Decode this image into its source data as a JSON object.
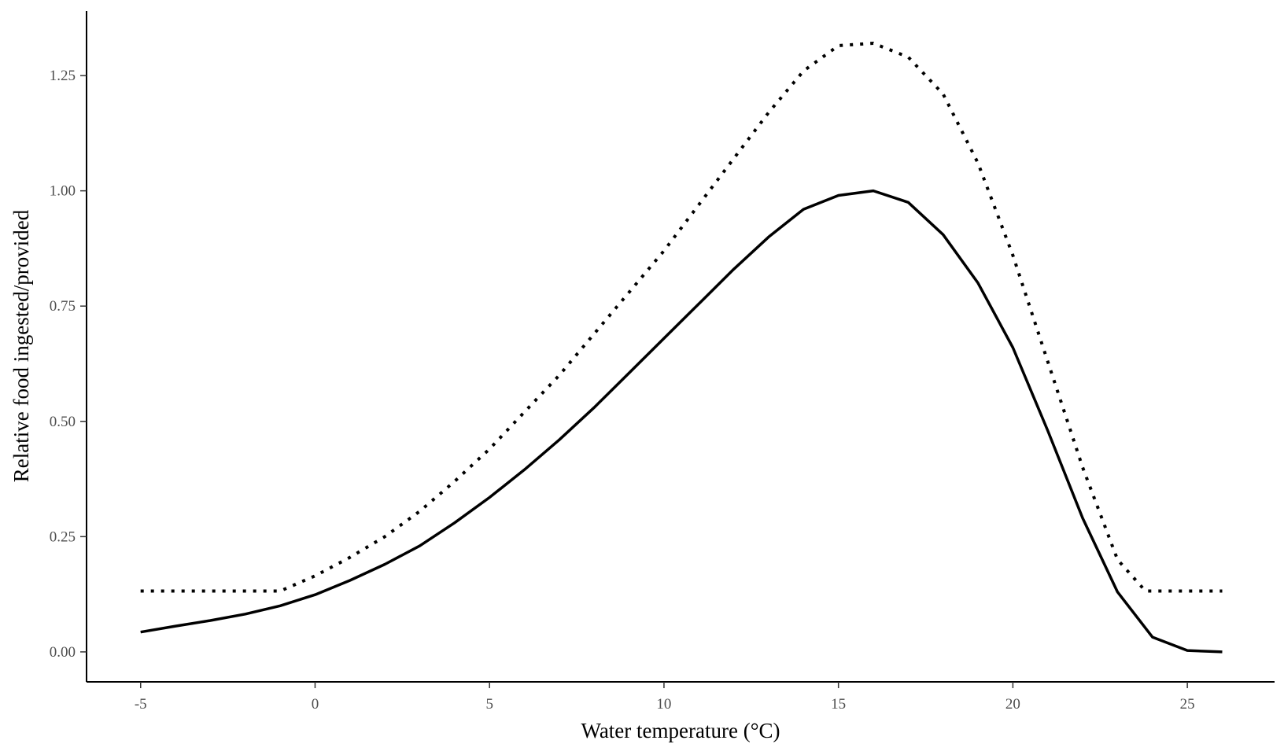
{
  "chart_data": {
    "type": "line",
    "xlabel": "Water temperature (°C)",
    "ylabel": "Relative food ingested/provided",
    "xlim": [
      -6.55,
      27.5
    ],
    "ylim": [
      -0.065,
      1.39
    ],
    "x_ticks": [
      -5,
      0,
      5,
      10,
      15,
      20,
      25
    ],
    "x_tick_labels": [
      "-5",
      "0",
      "5",
      "10",
      "15",
      "20",
      "25"
    ],
    "y_ticks": [
      0,
      0.25,
      0.5,
      0.75,
      1.0,
      1.25
    ],
    "y_tick_labels": [
      "0.00",
      "0.25",
      "0.50",
      "0.75",
      "1.00",
      "1.25"
    ],
    "grid": false,
    "legend": "none",
    "series": [
      {
        "style": "solid",
        "color": "#000000",
        "x": [
          -5,
          -4,
          -3,
          -2,
          -1,
          0,
          1,
          2,
          3,
          4,
          5,
          6,
          7,
          8,
          9,
          10,
          11,
          12,
          13,
          14,
          15,
          16,
          17,
          18,
          19,
          20,
          21,
          22,
          23,
          24,
          25,
          26
        ],
        "y": [
          0.043,
          0.056,
          0.068,
          0.082,
          0.1,
          0.124,
          0.155,
          0.19,
          0.23,
          0.28,
          0.335,
          0.395,
          0.46,
          0.53,
          0.605,
          0.68,
          0.755,
          0.83,
          0.9,
          0.96,
          0.99,
          1.0,
          0.975,
          0.905,
          0.8,
          0.66,
          0.48,
          0.29,
          0.13,
          0.032,
          0.003,
          0.0
        ]
      },
      {
        "style": "dotted",
        "color": "#000000",
        "x": [
          -5,
          -4,
          -3,
          -2,
          -1,
          0,
          1,
          2,
          3,
          4,
          5,
          6,
          7,
          8,
          9,
          10,
          11,
          12,
          13,
          14,
          15,
          16,
          17,
          18,
          19,
          20,
          21,
          22,
          23,
          23.8,
          24,
          25,
          26
        ],
        "y": [
          0.132,
          0.132,
          0.132,
          0.132,
          0.132,
          0.165,
          0.205,
          0.25,
          0.305,
          0.37,
          0.44,
          0.52,
          0.6,
          0.69,
          0.78,
          0.87,
          0.97,
          1.07,
          1.17,
          1.26,
          1.315,
          1.32,
          1.29,
          1.21,
          1.06,
          0.86,
          0.63,
          0.4,
          0.2,
          0.132,
          0.132,
          0.132,
          0.132
        ]
      }
    ]
  }
}
